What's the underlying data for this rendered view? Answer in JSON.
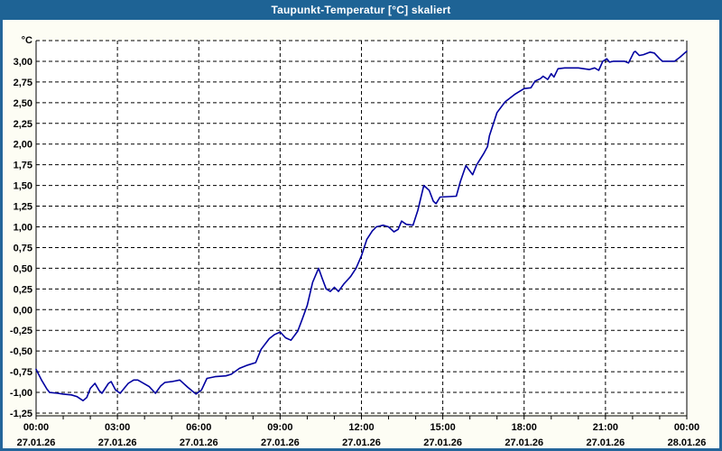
{
  "titlebar": {
    "title": "Taupunkt-Temperatur [°C] skaliert"
  },
  "colors": {
    "titlebar_bg": "#1e6395",
    "window_border": "#24659a",
    "outer_bg": "#fdfdf4",
    "plot_bg": "#ffffff",
    "grid": "#000000",
    "axis": "#000000",
    "label_text": "#000000",
    "series_line": "#0000a0"
  },
  "chart_data": {
    "type": "line",
    "title": "Taupunkt-Temperatur [°C] skaliert",
    "grid": {
      "style": "dashed",
      "color": "#000000"
    },
    "legend": "none",
    "y_axis": {
      "unit_label": "°C",
      "min": -1.25,
      "max": 3.25,
      "step": 0.25,
      "labeled_max": 3.0,
      "tick_labels": [
        "3,00",
        "2,75",
        "2,50",
        "2,25",
        "2,00",
        "1,75",
        "1,50",
        "1,25",
        "1,00",
        "0,75",
        "0,50",
        "0,25",
        "0,00",
        "-0,25",
        "-0,50",
        "-0,75",
        "-1,00",
        "-1,25"
      ]
    },
    "x_axis": {
      "range_hours": [
        0,
        24
      ],
      "minor_tick_every_hours": 1,
      "major_ticks": [
        {
          "hour": 0,
          "time": "00:00",
          "date": "27.01.26"
        },
        {
          "hour": 3,
          "time": "03:00",
          "date": "27.01.26"
        },
        {
          "hour": 6,
          "time": "06:00",
          "date": "27.01.26"
        },
        {
          "hour": 9,
          "time": "09:00",
          "date": "27.01.26"
        },
        {
          "hour": 12,
          "time": "12:00",
          "date": "27.01.26"
        },
        {
          "hour": 15,
          "time": "15:00",
          "date": "27.01.26"
        },
        {
          "hour": 18,
          "time": "18:00",
          "date": "27.01.26"
        },
        {
          "hour": 21,
          "time": "21:00",
          "date": "27.01.26"
        },
        {
          "hour": 24,
          "time": "00:00",
          "date": "28.01.26"
        }
      ]
    },
    "series": [
      {
        "name": "Taupunkt-Temperatur",
        "color": "#0000a0",
        "points": [
          [
            0.0,
            -0.72
          ],
          [
            0.2,
            -0.85
          ],
          [
            0.4,
            -0.96
          ],
          [
            0.5,
            -1.0
          ],
          [
            0.8,
            -1.01
          ],
          [
            1.0,
            -1.02
          ],
          [
            1.3,
            -1.03
          ],
          [
            1.5,
            -1.05
          ],
          [
            1.73,
            -1.1
          ],
          [
            1.87,
            -1.06
          ],
          [
            2.0,
            -0.95
          ],
          [
            2.17,
            -0.89
          ],
          [
            2.33,
            -0.98
          ],
          [
            2.43,
            -1.01
          ],
          [
            2.67,
            -0.89
          ],
          [
            2.77,
            -0.87
          ],
          [
            2.93,
            -0.97
          ],
          [
            3.1,
            -1.01
          ],
          [
            3.4,
            -0.89
          ],
          [
            3.6,
            -0.85
          ],
          [
            3.75,
            -0.85
          ],
          [
            4.17,
            -0.93
          ],
          [
            4.4,
            -1.01
          ],
          [
            4.6,
            -0.92
          ],
          [
            4.75,
            -0.88
          ],
          [
            5.0,
            -0.87
          ],
          [
            5.3,
            -0.85
          ],
          [
            5.6,
            -0.94
          ],
          [
            5.9,
            -1.02
          ],
          [
            6.1,
            -0.97
          ],
          [
            6.3,
            -0.83
          ],
          [
            6.6,
            -0.81
          ],
          [
            7.0,
            -0.8
          ],
          [
            7.2,
            -0.78
          ],
          [
            7.5,
            -0.71
          ],
          [
            7.8,
            -0.67
          ],
          [
            8.1,
            -0.64
          ],
          [
            8.3,
            -0.48
          ],
          [
            8.6,
            -0.35
          ],
          [
            8.8,
            -0.3
          ],
          [
            9.0,
            -0.27
          ],
          [
            9.2,
            -0.34
          ],
          [
            9.4,
            -0.37
          ],
          [
            9.65,
            -0.26
          ],
          [
            9.8,
            -0.13
          ],
          [
            10.0,
            0.05
          ],
          [
            10.2,
            0.33
          ],
          [
            10.42,
            0.5
          ],
          [
            10.55,
            0.38
          ],
          [
            10.7,
            0.25
          ],
          [
            10.85,
            0.22
          ],
          [
            11.0,
            0.27
          ],
          [
            11.15,
            0.22
          ],
          [
            11.35,
            0.31
          ],
          [
            11.6,
            0.4
          ],
          [
            11.8,
            0.5
          ],
          [
            12.0,
            0.65
          ],
          [
            12.2,
            0.85
          ],
          [
            12.4,
            0.95
          ],
          [
            12.55,
            1.0
          ],
          [
            12.8,
            1.02
          ],
          [
            13.0,
            1.0
          ],
          [
            13.2,
            0.94
          ],
          [
            13.35,
            0.97
          ],
          [
            13.48,
            1.07
          ],
          [
            13.65,
            1.03
          ],
          [
            13.9,
            1.02
          ],
          [
            14.08,
            1.2
          ],
          [
            14.3,
            1.5
          ],
          [
            14.5,
            1.44
          ],
          [
            14.65,
            1.31
          ],
          [
            14.75,
            1.28
          ],
          [
            14.9,
            1.36
          ],
          [
            15.5,
            1.37
          ],
          [
            15.65,
            1.55
          ],
          [
            15.85,
            1.74
          ],
          [
            16.1,
            1.63
          ],
          [
            16.25,
            1.75
          ],
          [
            16.5,
            1.88
          ],
          [
            16.65,
            1.97
          ],
          [
            16.72,
            2.1
          ],
          [
            17.0,
            2.38
          ],
          [
            17.3,
            2.51
          ],
          [
            17.65,
            2.6
          ],
          [
            18.0,
            2.67
          ],
          [
            18.25,
            2.68
          ],
          [
            18.4,
            2.76
          ],
          [
            18.6,
            2.79
          ],
          [
            18.7,
            2.82
          ],
          [
            18.87,
            2.78
          ],
          [
            19.0,
            2.85
          ],
          [
            19.1,
            2.81
          ],
          [
            19.25,
            2.91
          ],
          [
            19.5,
            2.92
          ],
          [
            20.0,
            2.92
          ],
          [
            20.4,
            2.9
          ],
          [
            20.6,
            2.92
          ],
          [
            20.75,
            2.89
          ],
          [
            20.9,
            3.0
          ],
          [
            21.05,
            3.03
          ],
          [
            21.15,
            2.99
          ],
          [
            21.3,
            3.0
          ],
          [
            21.7,
            3.0
          ],
          [
            21.85,
            2.98
          ],
          [
            22.05,
            3.11
          ],
          [
            22.1,
            3.12
          ],
          [
            22.25,
            3.07
          ],
          [
            22.4,
            3.08
          ],
          [
            22.65,
            3.11
          ],
          [
            22.8,
            3.1
          ],
          [
            23.0,
            3.03
          ],
          [
            23.1,
            3.0
          ],
          [
            23.55,
            3.0
          ],
          [
            23.75,
            3.05
          ],
          [
            23.92,
            3.1
          ],
          [
            24.0,
            3.12
          ]
        ]
      }
    ]
  }
}
